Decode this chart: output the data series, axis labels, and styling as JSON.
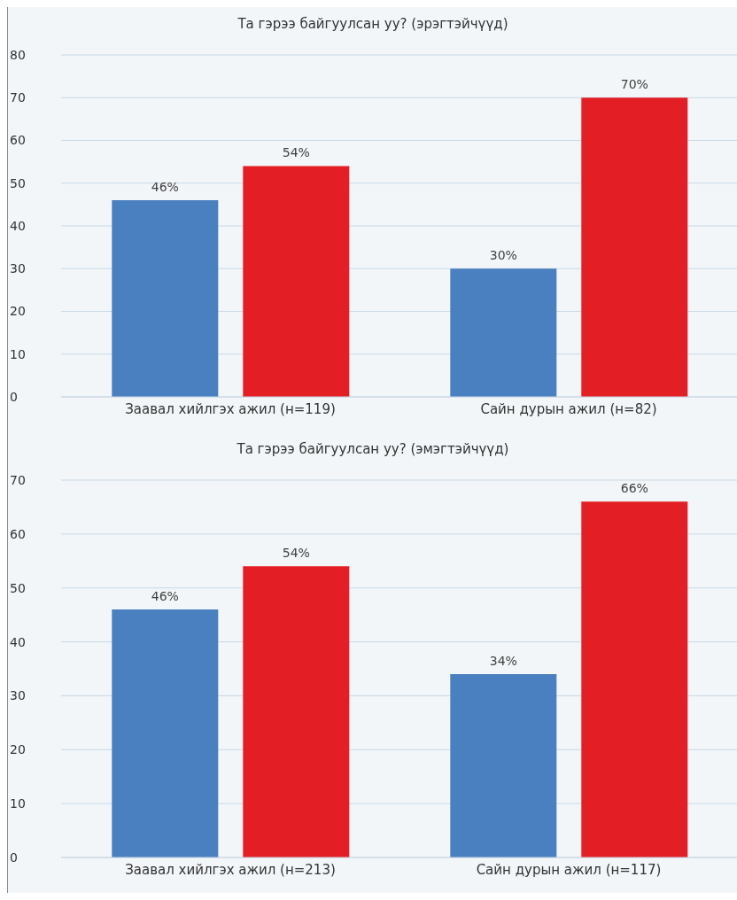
{
  "chart_data": [
    {
      "type": "bar",
      "title": "Та гэрээ байгуулсан уу? (эрэгтэйчүүд)",
      "categories": [
        "Заавал хийлгэх ажил (н=119)",
        "Сайн дурын ажил (н=82)"
      ],
      "series": [
        {
          "color": "#4a7fc0",
          "values": [
            46,
            30
          ],
          "value_labels": [
            "46%",
            "30%"
          ]
        },
        {
          "color": "#e31e24",
          "values": [
            54,
            70
          ],
          "value_labels": [
            "54%",
            "70%"
          ]
        }
      ],
      "ylim": [
        0,
        80
      ],
      "yticks": [
        0,
        10,
        20,
        30,
        40,
        50,
        60,
        70,
        80
      ],
      "grid": "y",
      "legend": false
    },
    {
      "type": "bar",
      "title": "Та гэрээ байгуулсан уу? (эмэгтэйчүүд)",
      "categories": [
        "Заавал хийлгэх ажил (н=213)",
        "Сайн дурын ажил (н=117)"
      ],
      "series": [
        {
          "color": "#4a7fc0",
          "values": [
            46,
            34
          ],
          "value_labels": [
            "46%",
            "34%"
          ]
        },
        {
          "color": "#e31e24",
          "values": [
            54,
            66
          ],
          "value_labels": [
            "54%",
            "66%"
          ]
        }
      ],
      "ylim": [
        0,
        70
      ],
      "yticks": [
        0,
        10,
        20,
        30,
        40,
        50,
        60,
        70
      ],
      "grid": "y",
      "legend": false
    }
  ]
}
